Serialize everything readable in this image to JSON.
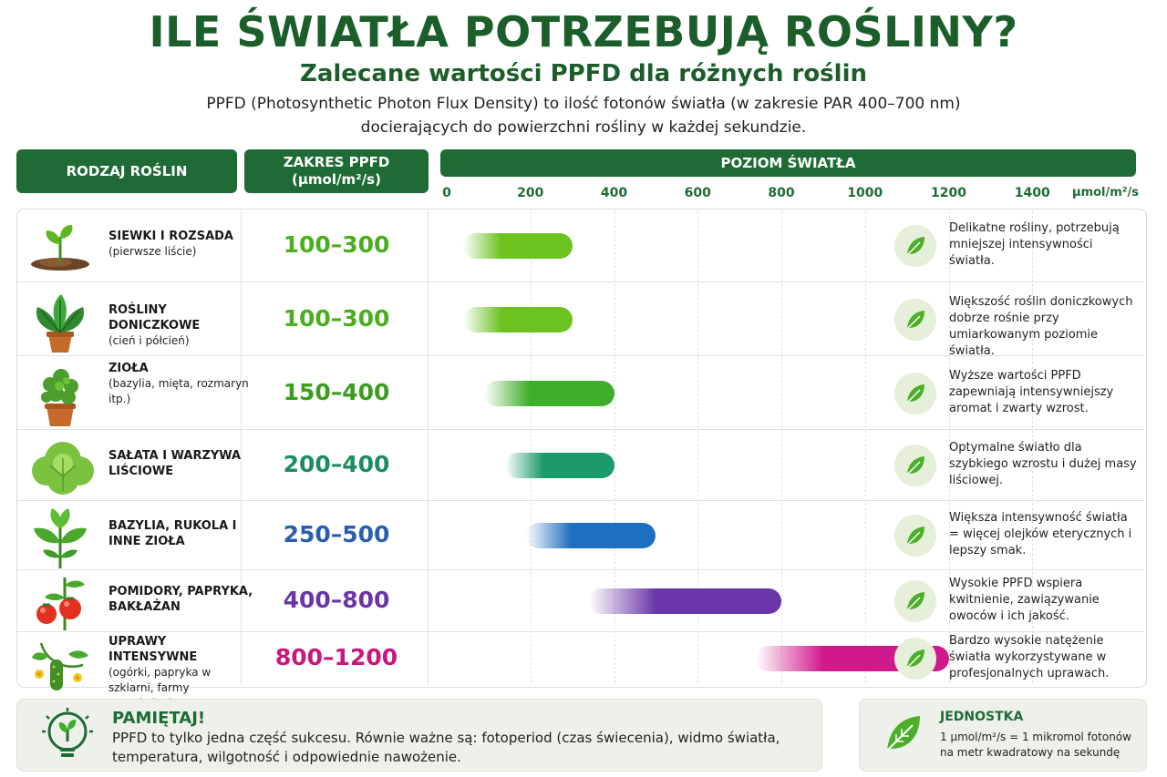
{
  "title": "ILE ŚWIATŁA POTRZEBUJĄ ROŚLINY?",
  "subtitle": "Zalecane wartości PPFD dla różnych roślin",
  "intro_line1": "PPFD (Photosynthetic Photon Flux Density) to ilość fotonów światła (w zakresie PAR 400–700 nm)",
  "intro_line2": "docierających do powierzchni rośliny w każdej sekundzie.",
  "headers": {
    "plant_type": "RODZAJ ROŚLIN",
    "range_line1": "ZAKRES PPFD",
    "range_line2": "(µmol/m²/s)",
    "level": "POZIOM ŚWIATŁA"
  },
  "chart_data": {
    "type": "bar",
    "orientation": "horizontal-range",
    "xlim": [
      0,
      1600
    ],
    "x_ticks": [
      "0",
      "200",
      "400",
      "600",
      "800",
      "1000",
      "1200",
      "1400"
    ],
    "x_unit": "µmol/m²/s",
    "rows": [
      {
        "name": "SIEWKI I ROZSADA",
        "sub": "(pierwsze liście)",
        "range_label": "100–300",
        "min": 100,
        "max": 300,
        "color": "#6cc21f",
        "note": "Delikatne rośliny, potrzebują mniejszej intensywności światła.",
        "icon": "seedling-icon"
      },
      {
        "name": "ROŚLINY DONICZKOWE",
        "sub": "(cień i półcień)",
        "range_label": "100–300",
        "min": 100,
        "max": 300,
        "color": "#6cc21f",
        "note": "Większość roślin doniczkowych dobrze rośnie przy umiarkowanym poziomie światła.",
        "icon": "potted-plant-icon"
      },
      {
        "name": "ZIOŁA",
        "sub": "(bazylia, mięta, rozmaryn itp.)",
        "range_label": "150–400",
        "min": 150,
        "max": 400,
        "color": "#3fae2a",
        "note": "Wyższe wartości PPFD zapewniają intensywniejszy aromat i zwarty wzrost.",
        "icon": "herb-pot-icon"
      },
      {
        "name": "SAŁATA I WARZYWA LIŚCIOWE",
        "sub": "",
        "range_label": "200–400",
        "min": 200,
        "max": 400,
        "color": "#1a9a6a",
        "note": "Optymalne światło dla szybkiego wzrostu i dużej masy liściowej.",
        "icon": "lettuce-icon"
      },
      {
        "name": "BAZYLIA, RUKOLA I INNE ZIOŁA",
        "sub": "",
        "range_label": "250–500",
        "min": 250,
        "max": 500,
        "color": "#1d6fc0",
        "note": "Większa intensywność światła = więcej olejków eterycznych i lepszy smak.",
        "icon": "basil-icon"
      },
      {
        "name": "POMIDORY, PAPRYKA, BAKŁAŻAN",
        "sub": "",
        "range_label": "400–800",
        "min": 400,
        "max": 800,
        "color": "#6a35a8",
        "note": "Wysokie PPFD wspiera kwitnienie, zawiązywanie owoców i ich jakość.",
        "icon": "tomato-icon"
      },
      {
        "name": "UPRAWY INTENSYWNE",
        "sub": "(ogórki, papryka w szklarni, farmy wertykalne)",
        "range_label": "800–1200",
        "min": 800,
        "max": 1200,
        "color": "#d0198c",
        "note": "Bardzo wysokie natężenie światła wykorzystywane w profesjonalnych uprawach.",
        "icon": "cucumber-icon"
      }
    ]
  },
  "remember": {
    "title": "PAMIĘTAJ!",
    "text": "PPFD to tylko jedna część sukcesu. Równie ważne są: fotoperiod (czas świecenia), widmo światła, temperatura, wilgotność i odpowiednie nawożenie.",
    "icon": "lightbulb-plant-icon"
  },
  "unit_box": {
    "title": "JEDNOSTKA",
    "text": "1 µmol/m²/s = 1 mikromol fotonów na metr kwadratowy na sekundę",
    "icon": "leaf-icon"
  }
}
